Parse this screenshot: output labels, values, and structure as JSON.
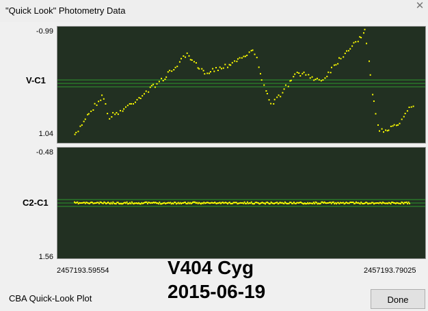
{
  "window": {
    "title": "\"Quick Look\" Photometry Data",
    "close_glyph": "✕"
  },
  "chart_data": [
    {
      "type": "scatter",
      "ylabel": "V-C1",
      "ylim": [
        -0.99,
        1.04
      ],
      "yticks": [
        "-0.99",
        "1.04"
      ],
      "y_inverted": true,
      "x_range": [
        "2457193.59554",
        "2457193.79025"
      ],
      "point_color": "#ffff00",
      "reference_line_color": "#2f9a2f",
      "phase_knots": [
        0,
        0.03,
        0.085,
        0.1,
        0.14,
        0.22,
        0.28,
        0.33,
        0.38,
        0.44,
        0.53,
        0.58,
        0.66,
        0.73,
        0.8,
        0.86,
        0.88,
        0.9,
        0.93,
        0.96,
        0.99
      ],
      "value_knots": [
        0.98,
        0.65,
        0.2,
        0.62,
        0.5,
        0.12,
        -0.18,
        -0.52,
        -0.2,
        -0.3,
        -0.6,
        0.42,
        -0.2,
        -0.05,
        -0.57,
        -0.95,
        0.15,
        0.85,
        0.85,
        0.72,
        0.4
      ],
      "points_count": 185
    },
    {
      "type": "scatter",
      "ylabel": "C2-C1",
      "ylim": [
        -0.48,
        1.56
      ],
      "yticks": [
        "-0.48",
        "1.56"
      ],
      "y_inverted": true,
      "x_range": [
        "2457193.59554",
        "2457193.79025"
      ],
      "point_color": "#ffff00",
      "reference_line_color": "#2f9a2f",
      "level": 0.54,
      "points_count": 340
    }
  ],
  "plot": {
    "x_start_label": "2457193.59554",
    "x_end_label": "2457193.79025",
    "star_name": "V404 Cyg",
    "date": "2015-06-19"
  },
  "footer": {
    "label": "CBA Quick-Look Plot"
  },
  "buttons": {
    "done": "Done"
  }
}
